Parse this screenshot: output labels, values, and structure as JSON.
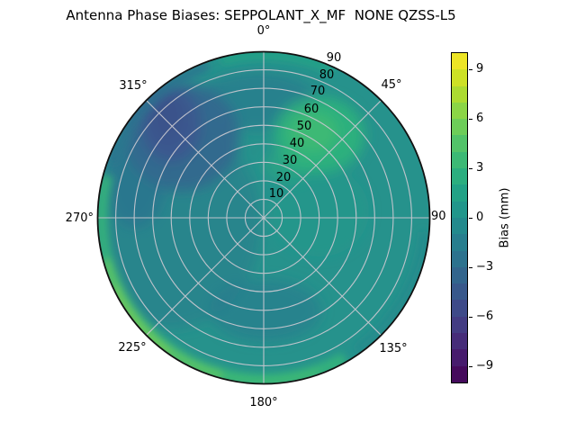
{
  "title": "Antenna Phase Biases: SEPPOLANT_X_MF  NONE QZSS-L5",
  "polar": {
    "angular_labels": {
      "a0": "0°",
      "a45": "45°",
      "a90": "90",
      "a135": "135°",
      "a180": "180°",
      "a225": "225°",
      "a270": "270°",
      "a315": "315°"
    },
    "radial_labels": [
      "10",
      "20",
      "30",
      "40",
      "50",
      "60",
      "70",
      "80",
      "90"
    ]
  },
  "colorbar": {
    "label": "Bias (mm)",
    "ticks": [
      "9",
      "6",
      "3",
      "0",
      "−3",
      "−6",
      "−9"
    ],
    "segment_colors_bottom_to_top": [
      "#450a5c",
      "#471b6d",
      "#462c79",
      "#433c83",
      "#3e4a89",
      "#38588b",
      "#32658d",
      "#2c728e",
      "#277e8e",
      "#238a8d",
      "#21968b",
      "#22a286",
      "#2bae7f",
      "#3cb975",
      "#52c369",
      "#6dcd59",
      "#8bd546",
      "#acdb31",
      "#cde126",
      "#ede525"
    ]
  },
  "chart_data": {
    "type": "heatmap",
    "projection": "polar",
    "title": "Antenna Phase Biases: SEPPOLANT_X_MF  NONE QZSS-L5",
    "theta_zero": "top",
    "theta_direction": "clockwise",
    "theta_ticks_deg": [
      0,
      45,
      90,
      135,
      180,
      225,
      270,
      315
    ],
    "r_ticks": [
      10,
      20,
      30,
      40,
      50,
      60,
      70,
      80,
      90
    ],
    "r_max": 90,
    "grid": true,
    "colorbar": {
      "label": "Bias (mm)",
      "tick_values": [
        9,
        6,
        3,
        0,
        -3,
        -6,
        -9
      ],
      "value_range": [
        -10,
        10
      ],
      "colormap": "viridis",
      "discrete_bands": 20
    },
    "regions": [
      {
        "azimuth_deg": "all",
        "zenith": "0-35",
        "bias_mm": 0.5,
        "note": "teal background over most of disc"
      },
      {
        "azimuth_deg": "25-60",
        "zenith": "30-70",
        "bias_mm": 3.5,
        "note": "bright green patch"
      },
      {
        "azimuth_deg": "290-335",
        "zenith": "40-90",
        "bias_mm": -4.5,
        "note": "dark blue patch"
      },
      {
        "azimuth_deg": "340-20",
        "zenith": "50-85",
        "bias_mm": -2,
        "note": "darker teal near top"
      },
      {
        "azimuth_deg": "240-300",
        "zenith": "40-85",
        "bias_mm": -1.5,
        "note": "blue-teal left side"
      },
      {
        "azimuth_deg": "160-200",
        "zenith": "40-70",
        "bias_mm": -1,
        "note": "darker teal bottom band"
      },
      {
        "azimuth_deg": "190-260",
        "zenith": "85-90",
        "bias_mm": 5.5,
        "note": "bright green outer rim lower-left"
      },
      {
        "azimuth_deg": "150-200",
        "zenith": "82-90",
        "bias_mm": 4,
        "note": "green bottom rim"
      },
      {
        "azimuth_deg": "345-25",
        "zenith": "85-90",
        "bias_mm": 2.5,
        "note": "greenish teal top rim"
      }
    ]
  }
}
